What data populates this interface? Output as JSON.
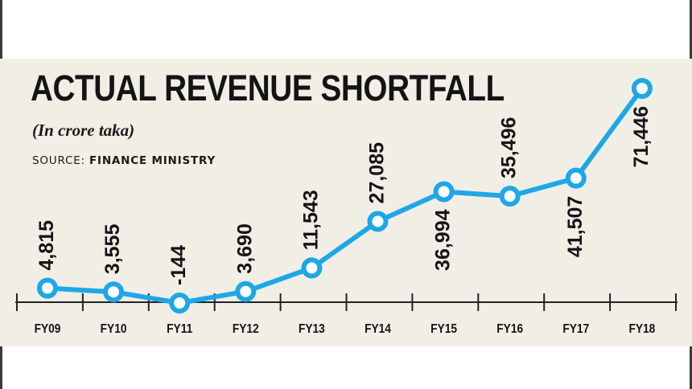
{
  "header": {
    "title": "ACTUAL REVENUE SHORTFALL",
    "subtitle": "(In crore taka)",
    "source_label": "SOURCE:",
    "source_value": "FINANCE MINISTRY"
  },
  "colors": {
    "line": "#1ea7e6",
    "marker_fill": "#ffffff",
    "background": "#f1eee6",
    "axis": "#222222",
    "text": "#141414"
  },
  "chart_data": {
    "type": "line",
    "title": "ACTUAL REVENUE SHORTFALL",
    "subtitle": "(In crore taka)",
    "categories": [
      "FY09",
      "FY10",
      "FY11",
      "FY12",
      "FY13",
      "FY14",
      "FY15",
      "FY16",
      "FY17",
      "FY18"
    ],
    "values": [
      4815,
      3555,
      -144,
      3690,
      11543,
      27085,
      36994,
      35496,
      41507,
      71446
    ],
    "data_labels": [
      "4,815",
      "3,555",
      "-144",
      "3,690",
      "11,543",
      "27,085",
      "36,994",
      "35,496",
      "41,507",
      "71,446"
    ],
    "xlabel": "",
    "ylabel": "",
    "grid": false,
    "legend": "none"
  }
}
